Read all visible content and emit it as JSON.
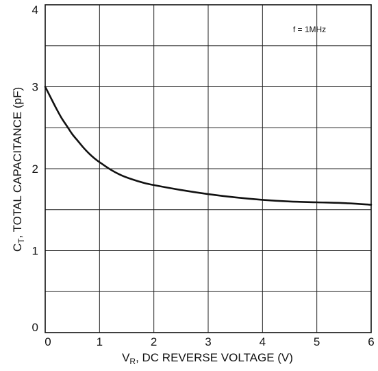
{
  "chart_data": {
    "type": "line",
    "title": "",
    "annotation": "f = 1MHz",
    "xlabel": {
      "main": "V",
      "sub": "R",
      "rest": ", DC REVERSE VOLTAGE (V)"
    },
    "ylabel": {
      "main": "C",
      "sub": "T",
      "rest": ", TOTAL CAPACITANCE (pF)"
    },
    "xlim": [
      0,
      6
    ],
    "ylim": [
      0,
      4
    ],
    "xticks": [
      0,
      1,
      2,
      3,
      4,
      5,
      6
    ],
    "yticks": [
      0,
      1,
      2,
      3,
      4
    ],
    "xtick_labels": [
      "0",
      "1",
      "2",
      "3",
      "4",
      "5",
      "6"
    ],
    "ytick_labels": [
      "0",
      "1",
      "2",
      "3",
      "4"
    ],
    "grid": true,
    "grid_x_step": 1,
    "grid_y_step": 0.5,
    "legend": "none",
    "series": [
      {
        "color": "#111111",
        "x": [
          0,
          0.1,
          0.2,
          0.3,
          0.4,
          0.5,
          0.6,
          0.7,
          0.8,
          0.9,
          1.0,
          1.2,
          1.4,
          1.6,
          1.8,
          2.0,
          2.5,
          3.0,
          3.5,
          4.0,
          4.5,
          5.0,
          5.5,
          6.0
        ],
        "y": [
          3.0,
          2.87,
          2.74,
          2.62,
          2.52,
          2.42,
          2.34,
          2.26,
          2.19,
          2.13,
          2.08,
          1.99,
          1.92,
          1.87,
          1.83,
          1.8,
          1.74,
          1.69,
          1.65,
          1.62,
          1.6,
          1.59,
          1.58,
          1.56
        ]
      }
    ]
  }
}
